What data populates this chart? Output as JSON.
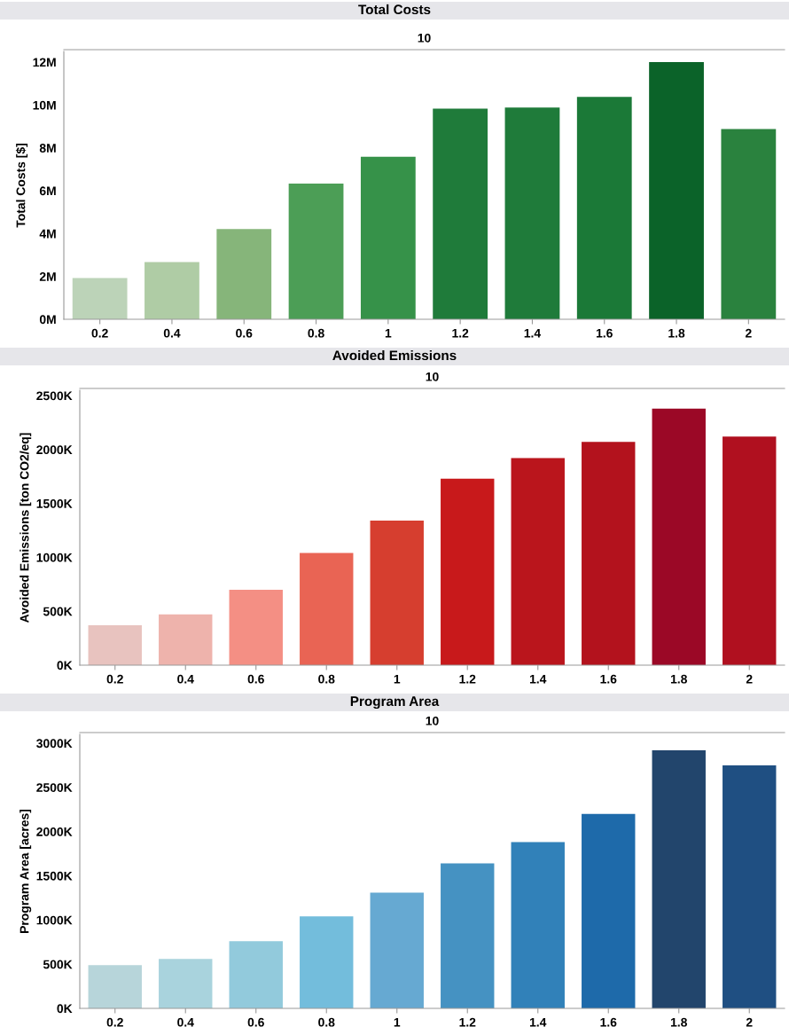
{
  "chart_data": [
    {
      "type": "bar",
      "title": "Total Costs",
      "subtitle": "10",
      "ylabel": "Total Costs [$]",
      "categories": [
        "0.2",
        "0.4",
        "0.6",
        "0.8",
        "1",
        "1.2",
        "1.4",
        "1.6",
        "1.8",
        "2"
      ],
      "values": [
        1920000,
        2670000,
        4210000,
        6330000,
        7580000,
        9830000,
        9880000,
        10380000,
        12000000,
        8880000
      ],
      "colors": [
        "#bcd3b8",
        "#afcca5",
        "#86b57a",
        "#4c9e56",
        "#369249",
        "#1f7b3a",
        "#1f7b3a",
        "#1b7937",
        "#0b6329",
        "#2a823e"
      ],
      "ylim": [
        0,
        12500000
      ],
      "yticks": [
        {
          "value": 0,
          "label": "0M"
        },
        {
          "value": 2000000,
          "label": "2M"
        },
        {
          "value": 4000000,
          "label": "4M"
        },
        {
          "value": 6000000,
          "label": "6M"
        },
        {
          "value": 8000000,
          "label": "8M"
        },
        {
          "value": 10000000,
          "label": "10M"
        },
        {
          "value": 12000000,
          "label": "12M"
        }
      ]
    },
    {
      "type": "bar",
      "title": "Avoided Emissions",
      "subtitle": "10",
      "ylabel": "Avoided Emissions [ton CO2/eq]",
      "categories": [
        "0.2",
        "0.4",
        "0.6",
        "0.8",
        "1",
        "1.2",
        "1.4",
        "1.6",
        "1.8",
        "2"
      ],
      "values": [
        370000,
        470000,
        700000,
        1040000,
        1340000,
        1730000,
        1920000,
        2070000,
        2380000,
        2120000
      ],
      "colors": [
        "#e8c3bf",
        "#eeb3ac",
        "#f48f84",
        "#e96454",
        "#d63e2f",
        "#c8191b",
        "#ba151c",
        "#b3121d",
        "#9b0826",
        "#b0101f"
      ],
      "ylim": [
        0,
        2550000
      ],
      "yticks": [
        {
          "value": 0,
          "label": "0K"
        },
        {
          "value": 500000,
          "label": "500K"
        },
        {
          "value": 1000000,
          "label": "1000K"
        },
        {
          "value": 1500000,
          "label": "1500K"
        },
        {
          "value": 2000000,
          "label": "2000K"
        },
        {
          "value": 2500000,
          "label": "2500K"
        }
      ]
    },
    {
      "type": "bar",
      "title": "Program Area",
      "subtitle": "10",
      "ylabel": "Program Area [acres]",
      "categories": [
        "0.2",
        "0.4",
        "0.6",
        "0.8",
        "1",
        "1.2",
        "1.4",
        "1.6",
        "1.8",
        "2"
      ],
      "values": [
        490000,
        560000,
        760000,
        1040000,
        1310000,
        1640000,
        1880000,
        2200000,
        2920000,
        2750000
      ],
      "colors": [
        "#b7d5da",
        "#a9d3dd",
        "#92cadc",
        "#73bddc",
        "#66a9d2",
        "#4592c2",
        "#3181b9",
        "#1e6aaa",
        "#22456c",
        "#1f4f82"
      ],
      "ylim": [
        0,
        3100000
      ],
      "yticks": [
        {
          "value": 0,
          "label": "0K"
        },
        {
          "value": 500000,
          "label": "500K"
        },
        {
          "value": 1000000,
          "label": "1000K"
        },
        {
          "value": 1500000,
          "label": "1500K"
        },
        {
          "value": 2000000,
          "label": "2000K"
        },
        {
          "value": 2500000,
          "label": "2500K"
        },
        {
          "value": 3000000,
          "label": "3000K"
        }
      ]
    }
  ]
}
